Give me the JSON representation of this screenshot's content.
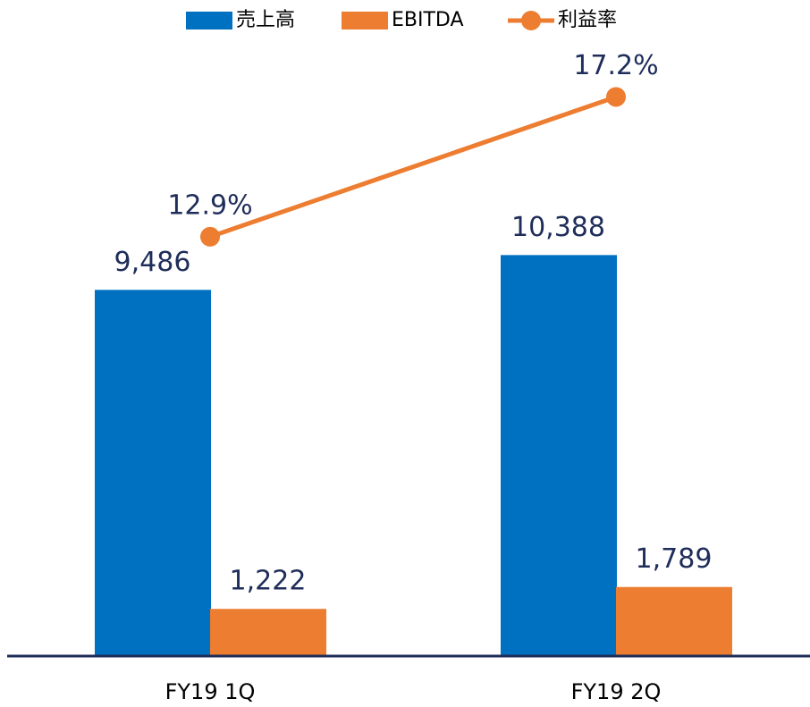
{
  "chart_data": {
    "type": "bar_line",
    "categories": [
      "FY19 1Q",
      "FY19 2Q"
    ],
    "series": [
      {
        "name": "売上高",
        "color": "#0070c0",
        "type": "bar",
        "values": [
          9486,
          10388
        ],
        "value_labels": [
          "9,486",
          "10,388"
        ]
      },
      {
        "name": "EBITDA",
        "color": "#ed7d31",
        "type": "bar",
        "values": [
          1222,
          1789
        ],
        "value_labels": [
          "1,222",
          "1,789"
        ]
      },
      {
        "name": "利益率",
        "color": "#ed7d31",
        "type": "line",
        "axis": "y2",
        "values": [
          12.9,
          17.2
        ],
        "value_labels": [
          "12.9%",
          "17.2%"
        ]
      }
    ],
    "ylim": [
      0,
      16000
    ],
    "y2lim": [
      0,
      19
    ],
    "legend": "top"
  }
}
